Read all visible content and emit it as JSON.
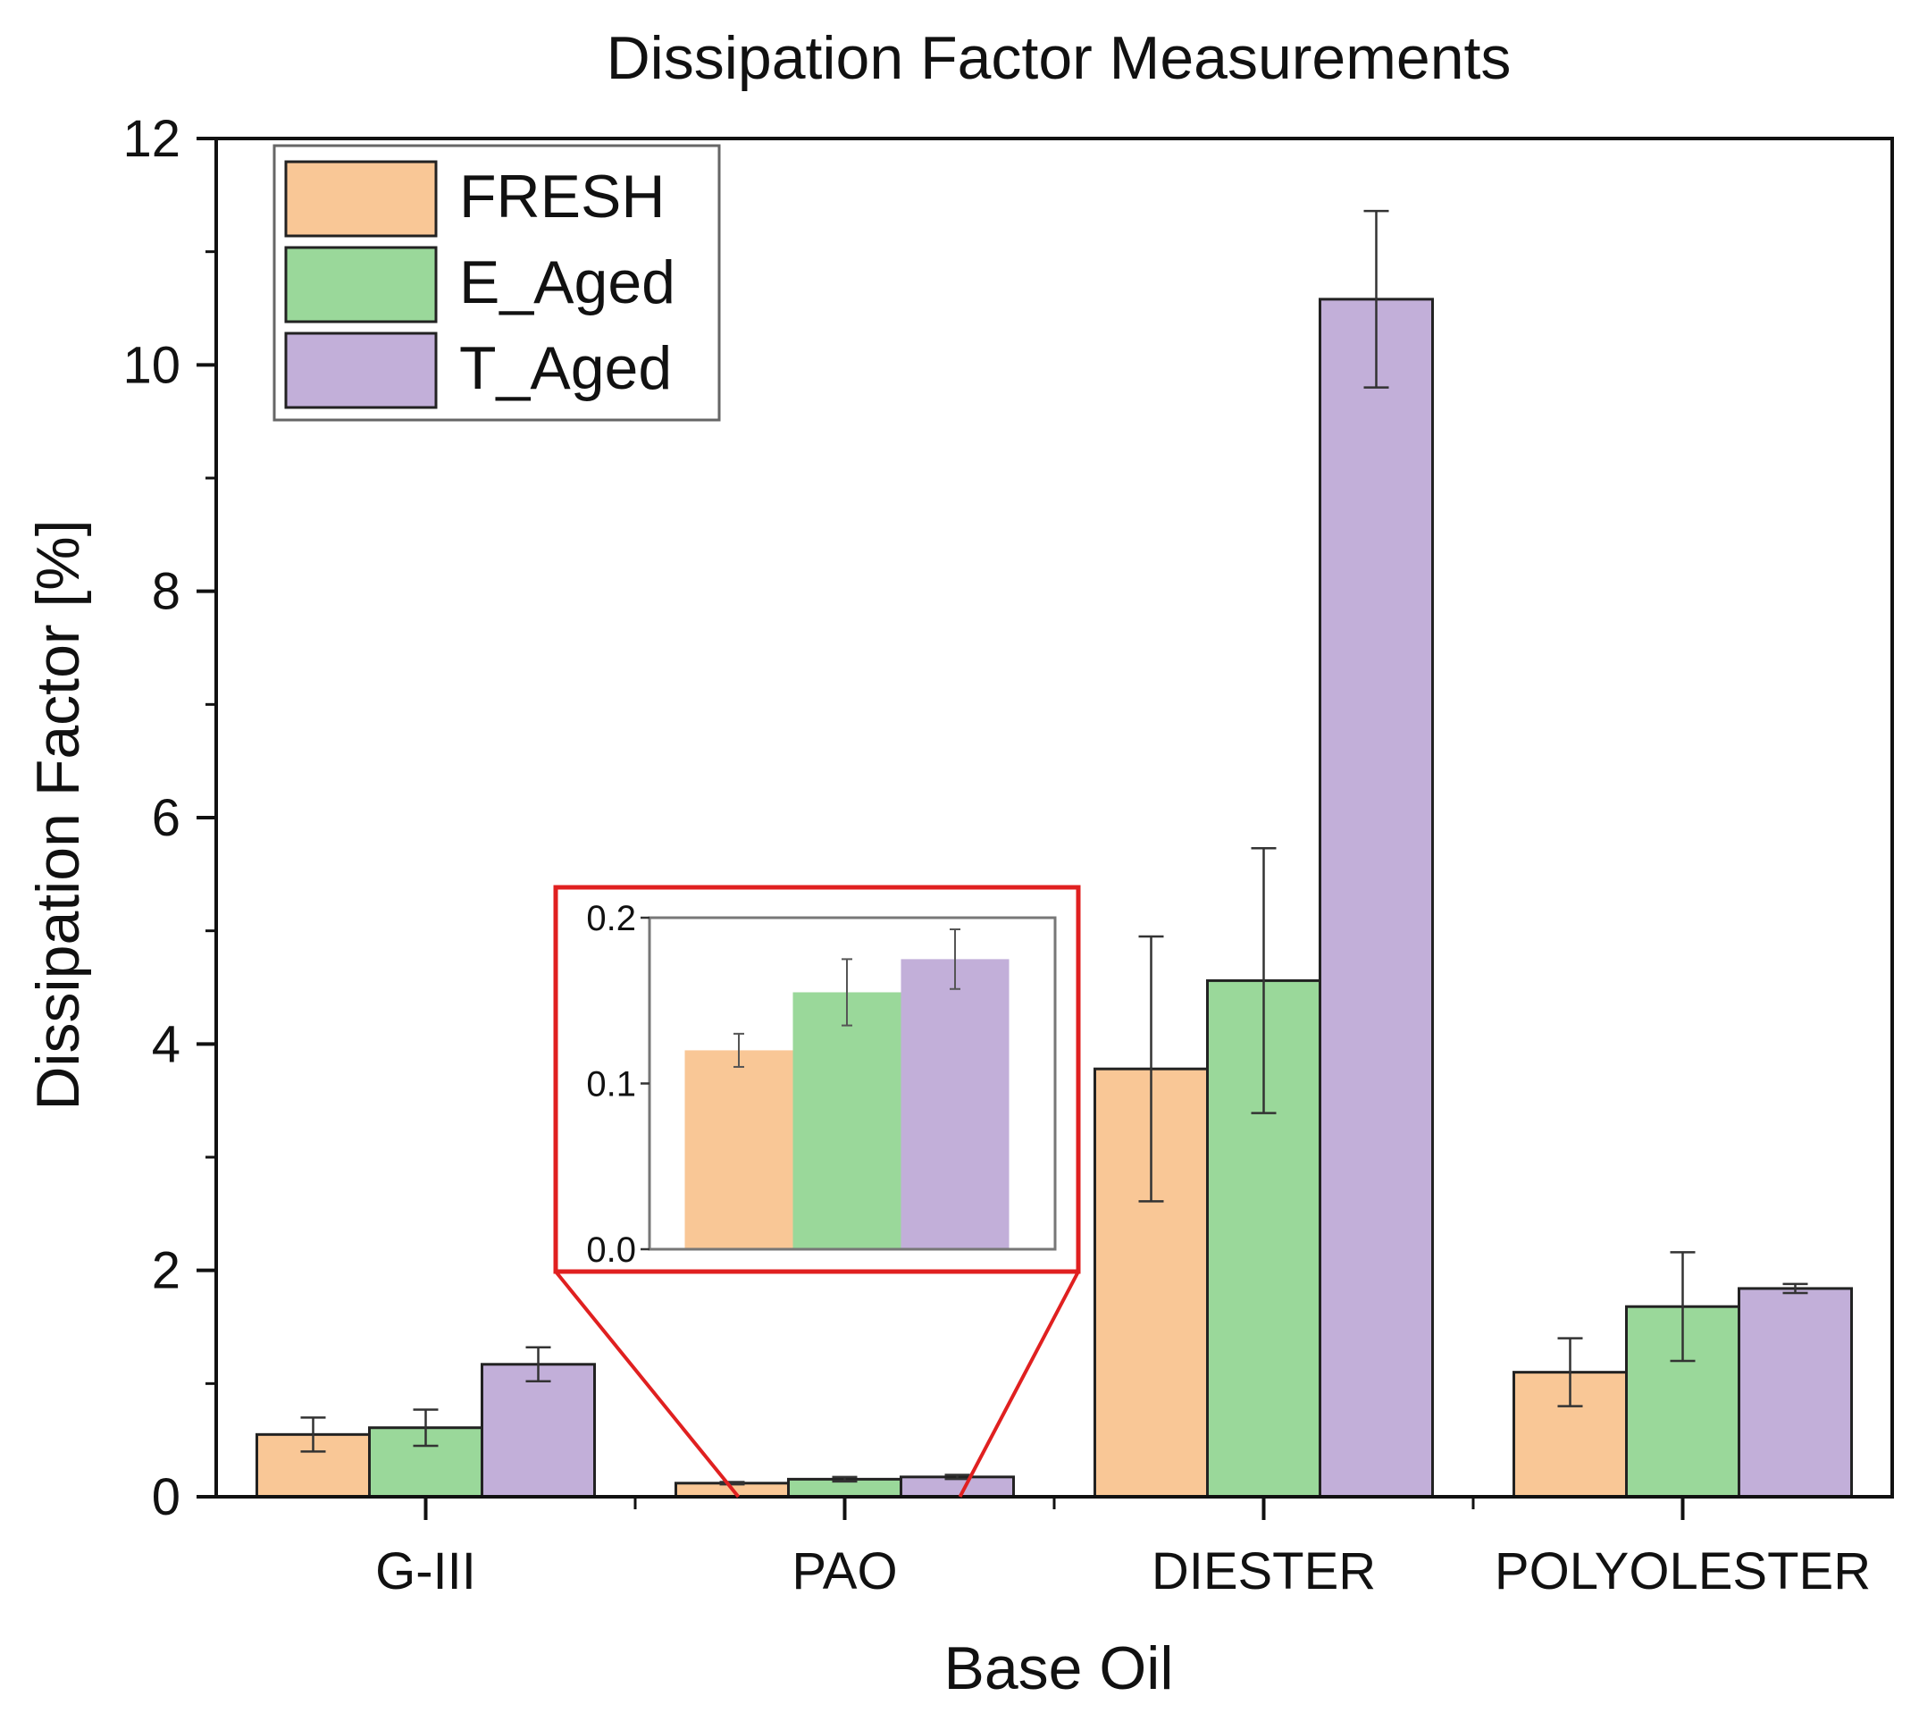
{
  "chart_data": {
    "type": "bar",
    "title": "Dissipation Factor Measurements",
    "xlabel": "Base Oil",
    "ylabel": "Dissipation Factor [%]",
    "ylim": [
      0,
      12
    ],
    "yticks": [
      "0",
      "2",
      "4",
      "6",
      "8",
      "10",
      "12"
    ],
    "categories": [
      "G-III",
      "PAO",
      "DIESTER",
      "POLYOLESTER"
    ],
    "series": [
      {
        "name": "FRESH",
        "color": "#f9c796",
        "values": [
          0.55,
          0.12,
          3.78,
          1.1
        ],
        "errors": [
          0.15,
          0.01,
          1.17,
          0.3
        ]
      },
      {
        "name": "E_Aged",
        "color": "#9ad89a",
        "values": [
          0.61,
          0.155,
          4.56,
          1.68
        ],
        "errors": [
          0.16,
          0.02,
          1.17,
          0.48
        ]
      },
      {
        "name": "T_Aged",
        "color": "#c2afd9",
        "values": [
          1.17,
          0.175,
          10.58,
          1.84
        ],
        "errors": [
          0.15,
          0.018,
          0.78,
          0.04
        ]
      }
    ],
    "legend_position": "top-left",
    "inset": {
      "category": "PAO",
      "ylim": [
        0,
        0.2
      ],
      "yticks": [
        "0.0",
        "0.1",
        "0.2"
      ],
      "border_color": "#e02020"
    }
  }
}
